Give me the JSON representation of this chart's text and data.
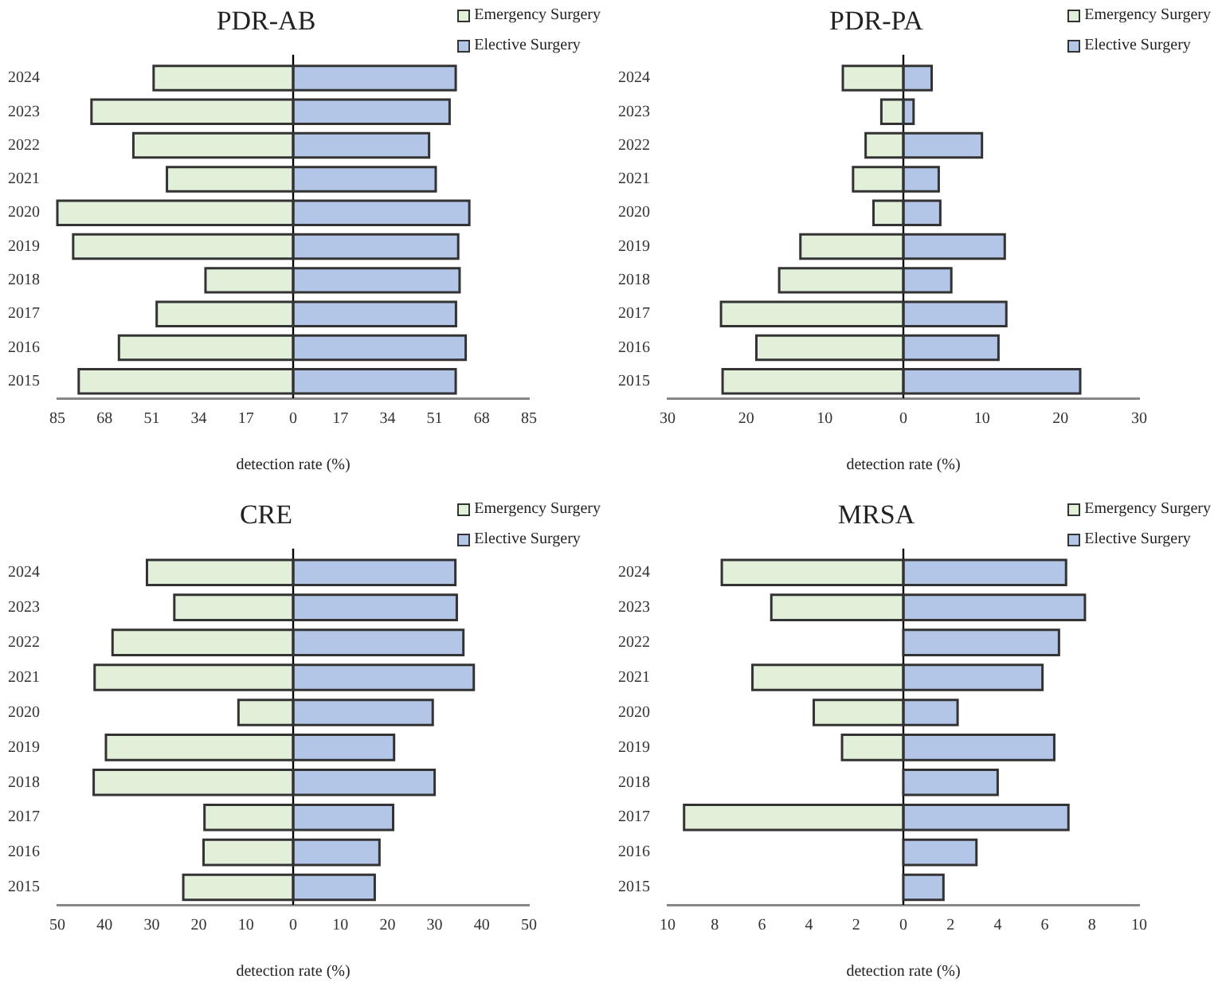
{
  "chart_data": [
    {
      "type": "bar",
      "orientation": "horizontal",
      "stacked": true,
      "title": "PDR-AB",
      "xlabel": "detection rate (%)",
      "legend": "top right",
      "categories": [
        "2024",
        "2023",
        "2022",
        "2021",
        "2020",
        "2019",
        "2018",
        "2017",
        "2016",
        "2015"
      ],
      "series": [
        {
          "name": "Emergency Surgery",
          "color": "#e2efd9",
          "values": [
            -50.3,
            -72.7,
            -57.6,
            -45.5,
            -85.0,
            -79.3,
            -31.6,
            -49.2,
            -62.8,
            -77.3
          ]
        },
        {
          "name": "Elective Surgery",
          "color": "#b4c6e7",
          "values": [
            58.6,
            56.4,
            49.0,
            51.4,
            63.5,
            59.5,
            60.0,
            58.7,
            62.2,
            58.6
          ]
        }
      ],
      "xlim": [
        -85,
        85
      ],
      "xticks": [
        {
          "value": -85,
          "label": "85"
        },
        {
          "value": -68,
          "label": "68"
        },
        {
          "value": -51,
          "label": "51"
        },
        {
          "value": -34,
          "label": "34"
        },
        {
          "value": -17,
          "label": "17"
        },
        0,
        17,
        34,
        51,
        68,
        85
      ]
    },
    {
      "type": "bar",
      "orientation": "horizontal",
      "stacked": true,
      "title": "PDR-PA",
      "xlabel": "detection rate (%)",
      "legend": "top right",
      "categories": [
        "2024",
        "2023",
        "2022",
        "2021",
        "2020",
        "2019",
        "2018",
        "2017",
        "2016",
        "2015"
      ],
      "series": [
        {
          "name": "Emergency Surgery",
          "color": "#e2efd9",
          "values": [
            -7.7,
            -2.8,
            -4.8,
            -6.4,
            -3.8,
            -13.1,
            -15.8,
            -23.2,
            -18.7,
            -23.0
          ]
        },
        {
          "name": "Elective Surgery",
          "color": "#b4c6e7",
          "values": [
            3.6,
            1.3,
            10.0,
            4.5,
            4.7,
            12.9,
            6.1,
            13.1,
            12.1,
            22.5
          ]
        }
      ],
      "xlim": [
        -30,
        30
      ],
      "xticks": [
        {
          "value": -30,
          "label": "30"
        },
        {
          "value": -20,
          "label": "20"
        },
        {
          "value": -10,
          "label": "10"
        },
        0,
        10,
        20,
        30
      ]
    },
    {
      "type": "bar",
      "orientation": "horizontal",
      "stacked": true,
      "title": "CRE",
      "xlabel": "detection rate (%)",
      "legend": "top right",
      "categories": [
        "2024",
        "2023",
        "2022",
        "2021",
        "2020",
        "2019",
        "2018",
        "2017",
        "2016",
        "2015"
      ],
      "series": [
        {
          "name": "Emergency Surgery",
          "color": "#e2efd9",
          "values": [
            -31.0,
            -25.2,
            -38.3,
            -42.1,
            -11.6,
            -39.7,
            -42.3,
            -18.8,
            -19.0,
            -23.3
          ]
        },
        {
          "name": "Elective Surgery",
          "color": "#b4c6e7",
          "values": [
            34.4,
            34.7,
            36.1,
            38.3,
            29.6,
            21.4,
            30.0,
            21.2,
            18.3,
            17.3
          ]
        }
      ],
      "xlim": [
        -50,
        50
      ],
      "xticks": [
        {
          "value": -50,
          "label": "50"
        },
        {
          "value": -40,
          "label": "40"
        },
        {
          "value": -30,
          "label": "30"
        },
        {
          "value": -20,
          "label": "20"
        },
        {
          "value": -10,
          "label": "10"
        },
        0,
        10,
        20,
        30,
        40,
        50
      ]
    },
    {
      "type": "bar",
      "orientation": "horizontal",
      "stacked": true,
      "title": "MRSA",
      "xlabel": "detection rate (%)",
      "legend": "top right",
      "categories": [
        "2024",
        "2023",
        "2022",
        "2021",
        "2020",
        "2019",
        "2018",
        "2017",
        "2016",
        "2015"
      ],
      "series": [
        {
          "name": "Emergency Surgery",
          "color": "#e2efd9",
          "values": [
            -7.7,
            -5.6,
            0,
            -6.4,
            -3.8,
            -2.6,
            0,
            -9.3,
            0,
            0
          ]
        },
        {
          "name": "Elective Surgery",
          "color": "#b4c6e7",
          "values": [
            6.9,
            7.7,
            6.6,
            5.9,
            2.3,
            6.4,
            4.0,
            7.0,
            3.1,
            1.7
          ]
        }
      ],
      "xlim": [
        -10,
        10
      ],
      "xticks": [
        {
          "value": -10,
          "label": "10"
        },
        {
          "value": -8,
          "label": "8"
        },
        {
          "value": -6,
          "label": "6"
        },
        {
          "value": -4,
          "label": "4"
        },
        {
          "value": -2,
          "label": "2"
        },
        0,
        2,
        4,
        6,
        8,
        10
      ]
    }
  ]
}
